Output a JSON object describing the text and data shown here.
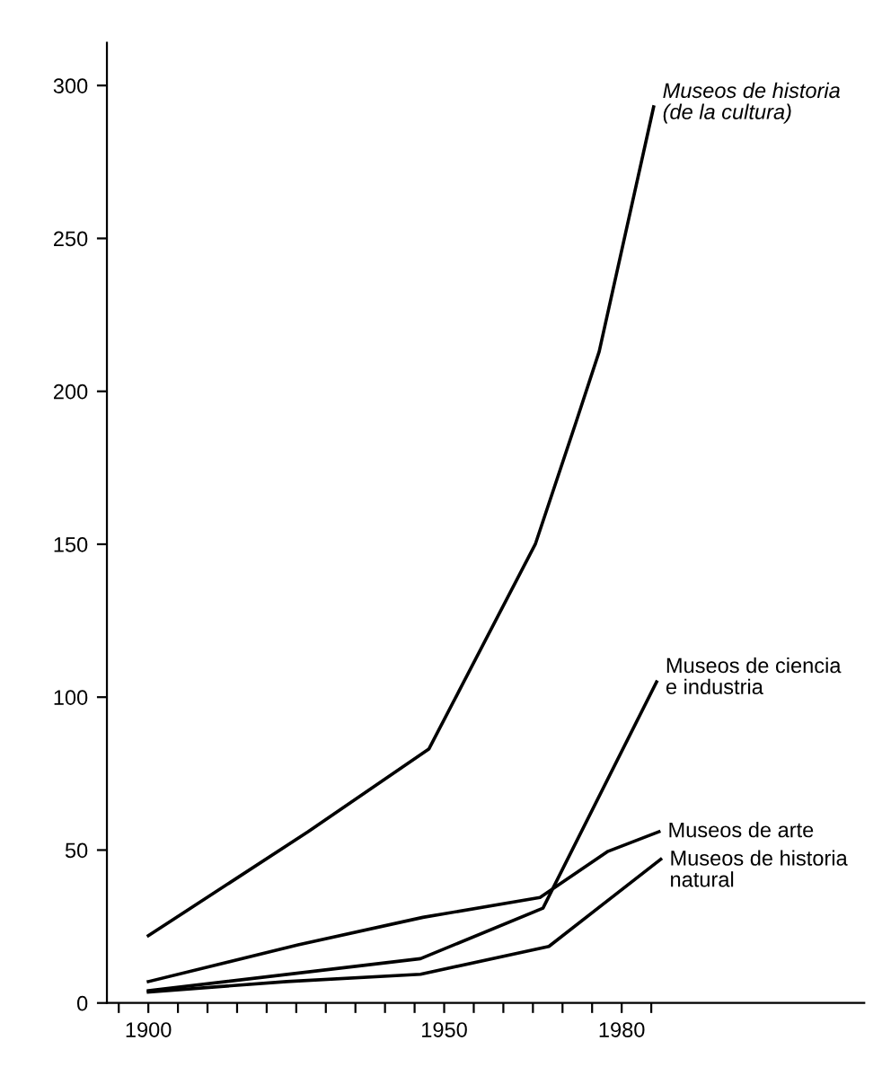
{
  "chart_data": {
    "type": "line",
    "xlim": [
      1893,
      2021
    ],
    "ylim": [
      0,
      314
    ],
    "xticks": [
      {
        "value": 1895,
        "label": null
      },
      1900,
      {
        "value": 1905,
        "label": null
      },
      {
        "value": 1910,
        "label": null
      },
      {
        "value": 1915,
        "label": null
      },
      {
        "value": 1920,
        "label": null
      },
      {
        "value": 1925,
        "label": null
      },
      {
        "value": 1930,
        "label": null
      },
      {
        "value": 1935,
        "label": null
      },
      {
        "value": 1940,
        "label": null
      },
      {
        "value": 1945,
        "label": null
      },
      1950,
      {
        "value": 1955,
        "label": null
      },
      {
        "value": 1960,
        "label": null
      },
      {
        "value": 1965,
        "label": null
      },
      {
        "value": 1970,
        "label": null
      },
      {
        "value": 1975,
        "label": null
      },
      1980,
      {
        "value": 1985,
        "label": null
      }
    ],
    "yticks": [
      0,
      50,
      100,
      150,
      200,
      250,
      300
    ],
    "grid": false,
    "legend": false,
    "marker": "none",
    "line_style": "solid",
    "series": [
      {
        "name": "Museos de historia\n(de la cultura)",
        "color": "#000000",
        "x": [
          1900,
          1927,
          1947.4,
          1965.4,
          1972.3,
          1976.2,
          1985.4
        ],
        "values": [
          22,
          56,
          83,
          150,
          190,
          213,
          293
        ]
      },
      {
        "name": "Museos de ciencia\ne industria",
        "color": "#000000",
        "x": [
          1900,
          1946,
          1966.7,
          1985.9
        ],
        "values": [
          4,
          14.5,
          31,
          105
        ]
      },
      {
        "name": "Museos de arte",
        "color": "#000000",
        "x": [
          1900,
          1925.3,
          1946.4,
          1966.2,
          1977.7,
          1986.3
        ],
        "values": [
          7,
          19,
          28,
          34.5,
          49.6,
          56
        ]
      },
      {
        "name": "Museos de historia\nnatural",
        "color": "#000000",
        "x": [
          1900,
          1923.4,
          1946,
          1967.7,
          1986.6
        ],
        "values": [
          3.6,
          7,
          9.4,
          18.5,
          47
        ]
      }
    ]
  }
}
